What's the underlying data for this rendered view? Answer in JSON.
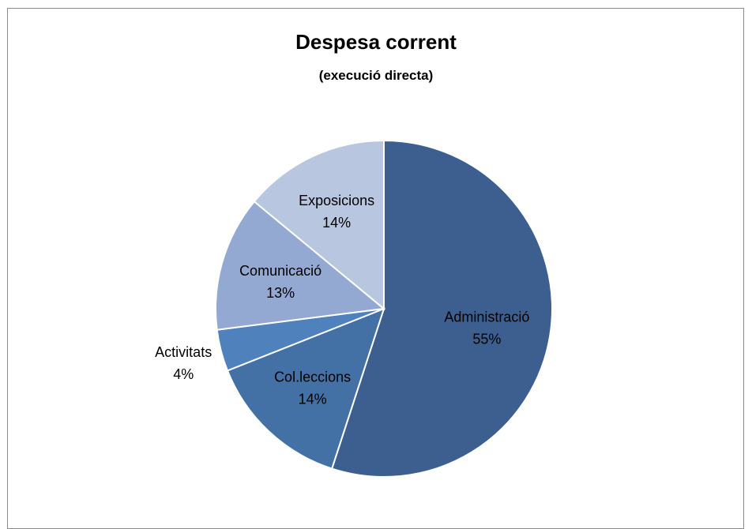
{
  "chart_data": {
    "type": "pie",
    "title": "Despesa corrent",
    "subtitle": "(execució directa)",
    "slices": [
      {
        "label": "Administració",
        "value": 55,
        "value_label": "55%",
        "color": "#3c5f8f"
      },
      {
        "label": "Col.leccions",
        "value": 14,
        "value_label": "14%",
        "color": "#4371a6"
      },
      {
        "label": "Activitats",
        "value": 4,
        "value_label": "4%",
        "color": "#4f81bd"
      },
      {
        "label": "Comunicació",
        "value": 13,
        "value_label": "13%",
        "color": "#94a9d2"
      },
      {
        "label": "Exposicions",
        "value": 14,
        "value_label": "14%",
        "color": "#b9c6df"
      }
    ],
    "start": "12 o'clock",
    "direction": "clockwise",
    "legend": "none",
    "data_labels": "category and percentage"
  }
}
